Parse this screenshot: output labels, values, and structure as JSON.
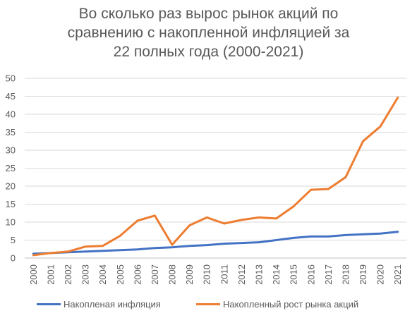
{
  "chart_data": {
    "type": "line",
    "title_lines": [
      "Во сколько раз вырос рынок акций по",
      "сравнению с накопленной инфляцией за",
      "22 полных года (2000-2021)"
    ],
    "xlabel": "",
    "ylabel": "",
    "ylim": [
      0,
      50
    ],
    "yticks": [
      "0",
      "5",
      "10",
      "15",
      "20",
      "25",
      "30",
      "35",
      "40",
      "45",
      "50"
    ],
    "categories": [
      "2000",
      "2001",
      "2002",
      "2003",
      "2004",
      "2005",
      "2006",
      "2007",
      "2008",
      "2009",
      "2010",
      "2011",
      "2012",
      "2013",
      "2014",
      "2015",
      "2016",
      "2017",
      "2018",
      "2019",
      "2020",
      "2021"
    ],
    "grid": true,
    "legend_position": "bottom",
    "series": [
      {
        "name": "Накопленая инфляция",
        "color": "#4472C4",
        "values": [
          1.2,
          1.4,
          1.6,
          1.8,
          2.0,
          2.2,
          2.4,
          2.8,
          3.0,
          3.4,
          3.6,
          4.0,
          4.2,
          4.4,
          5.0,
          5.6,
          6.0,
          6.0,
          6.4,
          6.6,
          6.8,
          7.3
        ]
      },
      {
        "name": "Накопленный рост рынка акций",
        "color": "#ED7D31",
        "values": [
          0.8,
          1.4,
          1.8,
          3.2,
          3.4,
          6.2,
          10.4,
          11.8,
          3.7,
          9.1,
          11.3,
          9.6,
          10.6,
          11.3,
          11.0,
          14.4,
          19.0,
          19.2,
          22.5,
          32.5,
          36.6,
          44.6
        ]
      }
    ]
  }
}
